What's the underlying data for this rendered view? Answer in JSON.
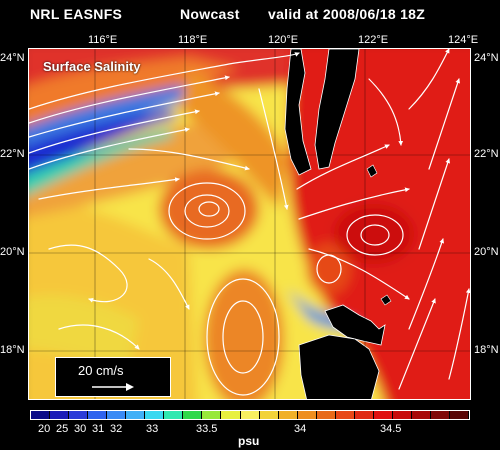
{
  "header": {
    "source": "NRL EASNFS",
    "run_type": "Nowcast",
    "valid": "valid at 2008/06/18 18Z"
  },
  "map": {
    "field_label": "Surface Salinity",
    "longitude_ticks": [
      "116°E",
      "118°E",
      "120°E",
      "122°E",
      "124°E"
    ],
    "latitude_ticks_left": [
      "24°N",
      "22°N",
      "20°N",
      "18°N"
    ],
    "latitude_ticks_right": [
      "24°N",
      "22°N",
      "20°N",
      "18°N"
    ]
  },
  "scale": {
    "label": "20 cm/s"
  },
  "colorbar": {
    "units": "psu",
    "tick_labels": [
      "20",
      "25",
      "30",
      "31",
      "32",
      "33",
      "33.5",
      "34",
      "34.5"
    ],
    "colors": [
      "#0b0b88",
      "#1b1bb8",
      "#2a3bd8",
      "#2e63ee",
      "#3a8af5",
      "#41b0f7",
      "#3ad8f0",
      "#30e8b0",
      "#2fd84a",
      "#98e83a",
      "#e8f040",
      "#f8f060",
      "#f2d238",
      "#f0b028",
      "#ee8e20",
      "#e86a1a",
      "#e84818",
      "#e02a14",
      "#e01010",
      "#c80a0a",
      "#a80808",
      "#800808",
      "#5a0606"
    ]
  },
  "colors": {
    "background": "#000000",
    "land": "#000000",
    "vectors": "#ffffff"
  }
}
